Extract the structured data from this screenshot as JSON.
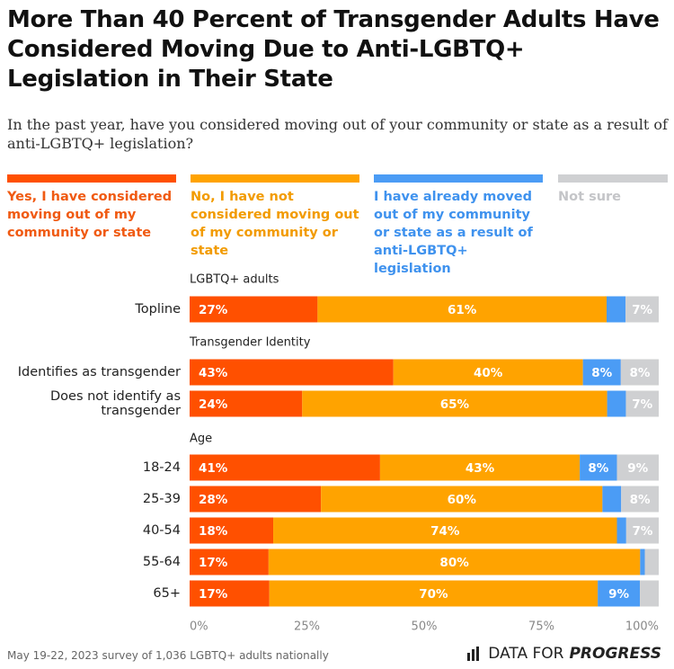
{
  "header": {
    "title": "More Than 40 Percent of Transgender Adults Have Considered Moving Due to Anti-LGBTQ+ Legislation in Their State",
    "subtitle": "In the past year, have you considered moving out of your community or state as a result of anti-LGBTQ+ legislation?"
  },
  "colors": {
    "considered": "#ff5000",
    "not_considered": "#ffa300",
    "moved": "#4b9cf5",
    "not_sure": "#cfd0d2"
  },
  "legend": [
    {
      "label": "Yes, I have considered moving out of my community or state",
      "color": "#ff5000"
    },
    {
      "label": "No, I have not considered moving out of my community or state",
      "color": "#ffa300"
    },
    {
      "label": "I have already moved out of my community or state as a result of anti-LGBTQ+ legislation",
      "color": "#4b9cf5"
    },
    {
      "label": "Not sure",
      "color": "#cfd0d2"
    }
  ],
  "chart_data": {
    "type": "bar",
    "orientation": "horizontal",
    "stacked": true,
    "xlim": [
      0,
      100
    ],
    "x_ticks": [
      "0%",
      "25%",
      "50%",
      "75%",
      "100%"
    ],
    "groups": [
      {
        "label": "LGBTQ+ adults",
        "categories": [
          "Topline"
        ]
      },
      {
        "label": "Transgender Identity",
        "categories": [
          "Identifies as transgender",
          "Does not identify as transgender"
        ]
      },
      {
        "label": "Age",
        "categories": [
          "18-24",
          "25-39",
          "40-54",
          "55-64",
          "65+"
        ]
      }
    ],
    "categories": [
      "Topline",
      "Identifies as transgender",
      "Does not identify as transgender",
      "18-24",
      "25-39",
      "40-54",
      "55-64",
      "65+"
    ],
    "series": [
      {
        "name": "Yes, I have considered moving out of my community or state",
        "values": [
          27,
          43,
          24,
          41,
          28,
          18,
          17,
          17
        ],
        "labels": [
          "27%",
          "43%",
          "24%",
          "41%",
          "28%",
          "18%",
          "17%",
          "17%"
        ]
      },
      {
        "name": "No, I have not considered moving out of my community or state",
        "values": [
          61,
          40,
          65,
          43,
          60,
          74,
          80,
          70
        ],
        "labels": [
          "61%",
          "40%",
          "65%",
          "43%",
          "60%",
          "74%",
          "80%",
          "70%"
        ]
      },
      {
        "name": "I have already moved out of my community or state as a result of anti-LGBTQ+ legislation",
        "values": [
          4,
          8,
          4,
          8,
          4,
          2,
          1,
          9
        ],
        "labels": [
          "",
          "8%",
          "",
          "8%",
          "",
          "",
          "",
          "9%"
        ]
      },
      {
        "name": "Not sure",
        "values": [
          7,
          8,
          7,
          9,
          8,
          7,
          3,
          4
        ],
        "labels": [
          "7%",
          "8%",
          "7%",
          "9%",
          "8%",
          "7%",
          "",
          ""
        ]
      }
    ]
  },
  "footer": {
    "note": "May 19-22, 2023 survey of 1,036 LGBTQ+ adults nationally",
    "brand_prefix": "DATA FOR",
    "brand_strong": "PROGRESS"
  }
}
